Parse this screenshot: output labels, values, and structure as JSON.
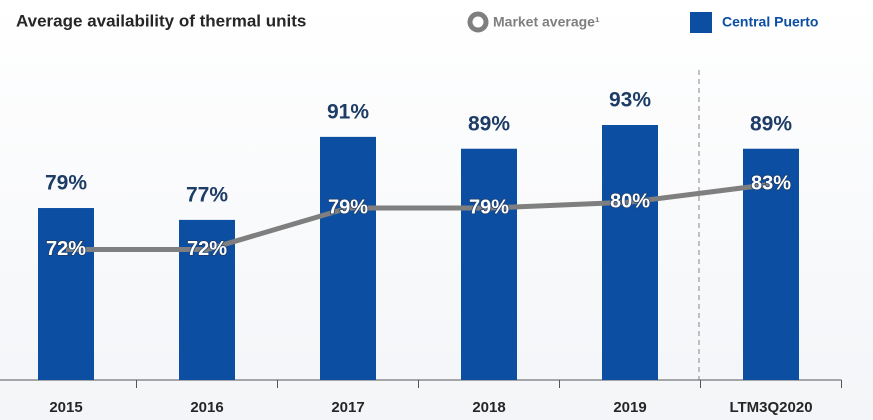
{
  "chart_data": {
    "type": "bar",
    "title": "Average availability of thermal units",
    "categories": [
      "2015",
      "2016",
      "2017",
      "2018",
      "2019",
      "LTM3Q2020"
    ],
    "series": [
      {
        "name": "Central Puerto",
        "type": "bar",
        "color": "#0b4ea2",
        "values": [
          79,
          77,
          91,
          89,
          93,
          89
        ],
        "value_labels": [
          "79%",
          "77%",
          "91%",
          "89%",
          "93%",
          "89%"
        ]
      },
      {
        "name": "Market average¹",
        "type": "line",
        "color": "#7f7f7f",
        "values": [
          72,
          72,
          79,
          79,
          80,
          83
        ],
        "value_labels": [
          "72%",
          "72%",
          "79%",
          "79%",
          "80%",
          "83%"
        ]
      }
    ],
    "ylim": [
      50,
      100
    ]
  }
}
